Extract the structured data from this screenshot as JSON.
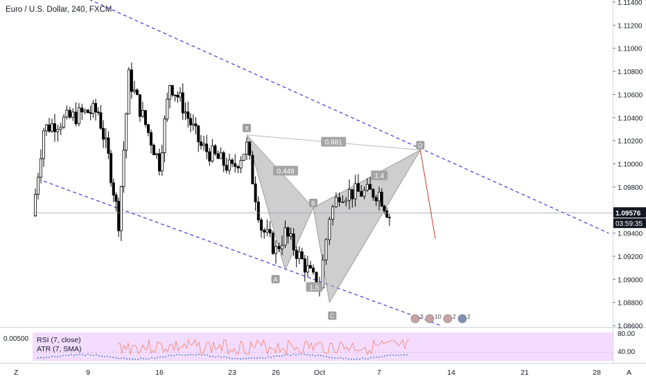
{
  "header": {
    "title": "Euro / U.S. Dollar, 240, FXCM"
  },
  "colors": {
    "up": "#000000",
    "down": "#000000",
    "channel": "#3a3ad6",
    "pattern_fill": "#a6a6a6",
    "projection": "#c0392b",
    "rsi_band": "#f3dcff",
    "rsi_line": "#f58a72",
    "atr_dots": "#2f6fd6",
    "price_tag": "#131722"
  },
  "price_axis": {
    "ticks": [
      "1.11400",
      "1.11200",
      "1.11000",
      "1.10800",
      "1.10600",
      "1.10400",
      "1.10200",
      "1.10000",
      "1.09800",
      "1.09600",
      "1.09400",
      "1.09200",
      "1.09000",
      "1.08800",
      "1.08600"
    ],
    "last_price": "1.09576",
    "countdown": "03:59:35"
  },
  "time_axis": {
    "ticks": [
      "9",
      "16",
      "23",
      "26",
      "Oct",
      "7",
      "14",
      "21",
      "28"
    ],
    "corner_left": "Z",
    "corner_right": "A"
  },
  "indicators": {
    "rsi_label": "RSI (7, close)",
    "atr_label": "ATR (7, SMA)",
    "left_value": "0.00500",
    "ticks": [
      "80.00",
      "40.00"
    ]
  },
  "pattern": {
    "points": [
      {
        "label": "X",
        "date": "Sep 24",
        "price": 1.1025
      },
      {
        "label": "A",
        "date": "Sep 27",
        "price": 1.0908
      },
      {
        "label": "B",
        "date": "Sep 30",
        "price": 1.0962
      },
      {
        "label": "C",
        "date": "Oct 2",
        "price": 1.088
      },
      {
        "label": "D",
        "date": "Oct 11",
        "price": 1.1012
      }
    ],
    "ratios": [
      "0.449",
      "1.5",
      "1.4",
      "0.881"
    ]
  },
  "badges": [
    {
      "icon": "us-flag-icon",
      "count": "3"
    },
    {
      "icon": "us-flag-icon",
      "count": "10"
    },
    {
      "icon": "us-flag-icon",
      "count": "2"
    },
    {
      "icon": "eu-flag-icon",
      "count": "2"
    }
  ],
  "chart_data": {
    "type": "candlestick",
    "title": "Euro / U.S. Dollar, 240, FXCM",
    "ylim": [
      1.0855,
      1.1145
    ],
    "x_range": [
      "Sep 5",
      "Oct 31"
    ],
    "close_series_approx": [
      {
        "date": "Sep 4",
        "close": 1.0955
      },
      {
        "date": "Sep 5",
        "close": 1.103
      },
      {
        "date": "Sep 6",
        "close": 1.1035
      },
      {
        "date": "Sep 9",
        "close": 1.1045
      },
      {
        "date": "Sep 10",
        "close": 1.1045
      },
      {
        "date": "Sep 11",
        "close": 1.1005
      },
      {
        "date": "Sep 12",
        "close": 1.095
      },
      {
        "date": "Sep 13",
        "close": 1.1075
      },
      {
        "date": "Sep 16",
        "close": 1.1
      },
      {
        "date": "Sep 17",
        "close": 1.107
      },
      {
        "date": "Sep 18",
        "close": 1.1055
      },
      {
        "date": "Sep 19",
        "close": 1.1035
      },
      {
        "date": "Sep 20",
        "close": 1.1015
      },
      {
        "date": "Sep 23",
        "close": 1.0995
      },
      {
        "date": "Sep 24",
        "close": 1.1015
      },
      {
        "date": "Sep 25",
        "close": 1.0945
      },
      {
        "date": "Sep 26",
        "close": 1.0925
      },
      {
        "date": "Sep 27",
        "close": 1.094
      },
      {
        "date": "Sep 30",
        "close": 1.09
      },
      {
        "date": "Oct 1",
        "close": 1.0895
      },
      {
        "date": "Oct 2",
        "close": 1.0955
      },
      {
        "date": "Oct 3",
        "close": 1.0975
      },
      {
        "date": "Oct 4",
        "close": 1.0975
      },
      {
        "date": "Oct 7",
        "close": 1.0975
      },
      {
        "date": "Oct 8",
        "close": 1.0955
      }
    ],
    "last_price": 1.09576,
    "channel_upper": [
      {
        "date": "Sep 5",
        "price": 1.116
      },
      {
        "date": "Oct 31",
        "price": 1.094
      }
    ],
    "channel_lower": [
      {
        "date": "Sep 5",
        "price": 1.0985
      },
      {
        "date": "Oct 13",
        "price": 1.086
      }
    ],
    "projection_line": [
      {
        "date": "Oct 11",
        "price": 1.1012
      },
      {
        "date": "Oct 13",
        "price": 1.0935
      }
    ]
  }
}
